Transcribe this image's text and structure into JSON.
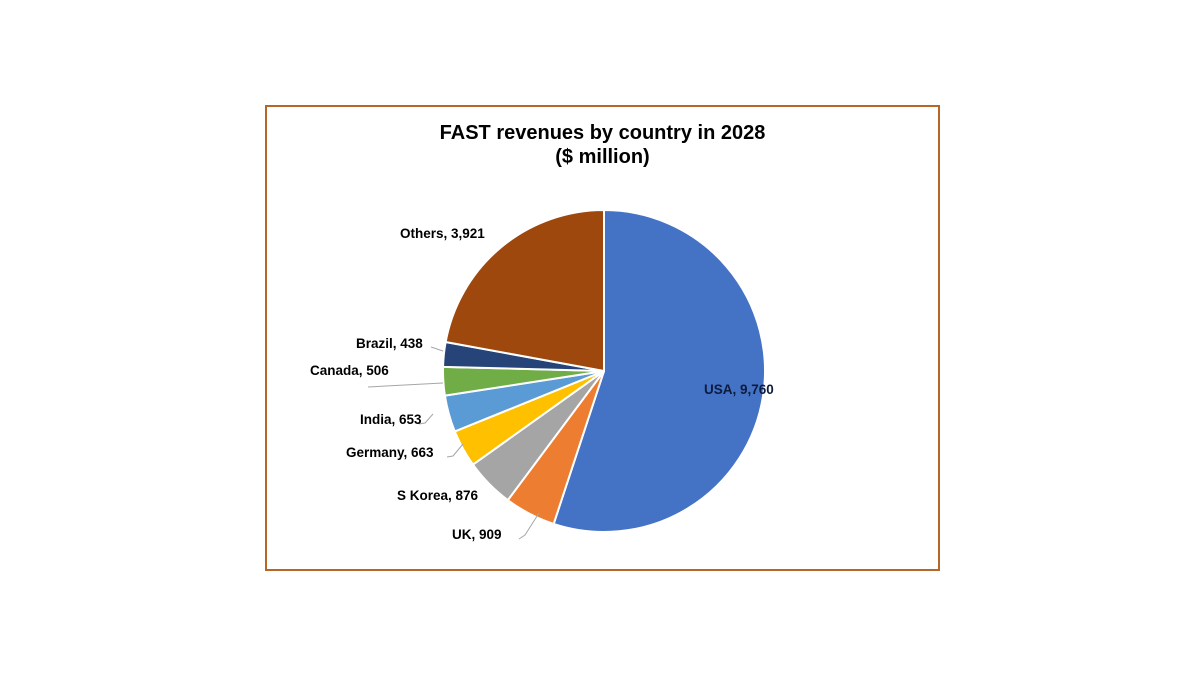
{
  "chart_data": {
    "type": "pie",
    "title": "FAST revenues by country in 2028",
    "subtitle": "($ million)",
    "categories": [
      "USA",
      "UK",
      "S Korea",
      "Germany",
      "India",
      "Canada",
      "Brazil",
      "Others"
    ],
    "values": [
      9760,
      909,
      876,
      663,
      653,
      506,
      438,
      3921
    ],
    "colors": [
      "#4472C4",
      "#ED7D31",
      "#A5A5A5",
      "#FFC000",
      "#5B9BD5",
      "#70AD47",
      "#264478",
      "#9E480E"
    ],
    "data_labels": [
      "USA, 9,760",
      "UK, 909",
      "S Korea, 876",
      "Germany, 663",
      "India, 653",
      "Canada, 506",
      "Brazil, 438",
      "Others, 3,921"
    ],
    "start_angle": "12 o'clock, clockwise",
    "legend": "none",
    "frame_color": "#B5672A"
  },
  "title": {
    "line1": "FAST revenues by country in 2028",
    "line2": "($ million)"
  }
}
